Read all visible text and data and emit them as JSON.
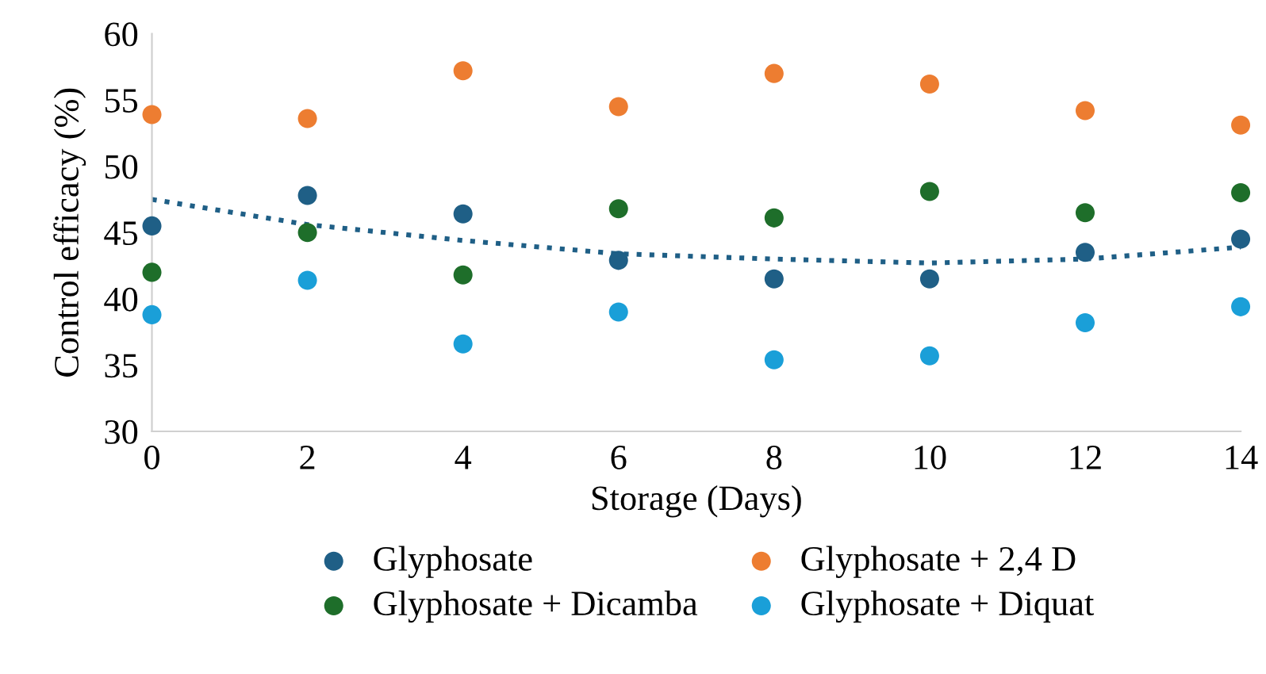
{
  "chart_data": {
    "type": "scatter",
    "xlabel": "Storage (Days)",
    "ylabel": "Control efficacy (%)",
    "x": [
      0,
      2,
      4,
      6,
      8,
      10,
      12,
      14
    ],
    "xlim": [
      0,
      14
    ],
    "xticks": [
      0,
      2,
      4,
      6,
      8,
      10,
      12,
      14
    ],
    "ylim": [
      30,
      60
    ],
    "yticks": [
      30,
      35,
      40,
      45,
      50,
      55,
      60
    ],
    "grid": false,
    "legend": "bottom",
    "marker": "circle",
    "series": [
      {
        "name": "Glyphosate",
        "color": "#1f5f86",
        "values": [
          45.5,
          47.8,
          46.4,
          42.9,
          41.5,
          41.5,
          43.5,
          44.5
        ]
      },
      {
        "name": "Glyphosate + 2,4 D",
        "color": "#ed7d31",
        "values": [
          53.9,
          53.6,
          57.2,
          54.5,
          57.0,
          56.2,
          54.2,
          53.1
        ]
      },
      {
        "name": "Glyphosate + Dicamba",
        "color": "#1e6e2a",
        "values": [
          42.0,
          45.0,
          41.8,
          46.8,
          46.1,
          48.1,
          46.5,
          48.0
        ]
      },
      {
        "name": "Glyphosate + Diquat",
        "color": "#1a9fd8",
        "values": [
          38.8,
          41.4,
          36.6,
          39.0,
          35.4,
          35.7,
          38.2,
          39.4
        ]
      },
      {
        "type": "line",
        "line_style": "dotted",
        "marker": "none",
        "color": "#1f5f86",
        "values": [
          47.5,
          45.6,
          44.4,
          43.4,
          43.0,
          42.7,
          43.0,
          43.9
        ]
      }
    ]
  }
}
